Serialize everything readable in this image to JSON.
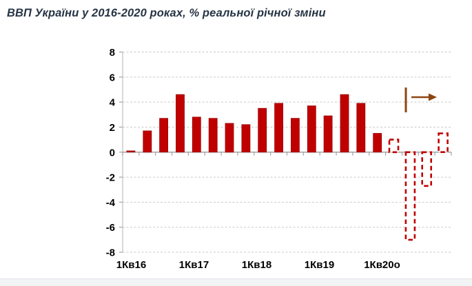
{
  "page": {
    "title": "ВВП України у 2016-2020 роках, % реальної річної зміни"
  },
  "chart_data": {
    "type": "bar",
    "title": "ВВП України у 2016-2020 роках, % реальної річної зміни",
    "ylabel": "% реальної річної зміни",
    "ylim": [
      -8,
      8
    ],
    "y_ticks": [
      "8",
      "6",
      "4",
      "2",
      "0",
      "-2",
      "-4",
      "-6",
      "-8"
    ],
    "x_tick_labels": [
      "1Кв16",
      "1Кв17",
      "1Кв18",
      "1Кв19",
      "1Кв20о"
    ],
    "grid": true,
    "legend": "none",
    "bar_color": "#c00000",
    "bar_edge_color": "#990000",
    "forecast_style": "dashed-outline",
    "bars": [
      {
        "quarter": "1Кв16",
        "value": 0.1,
        "forecast": false
      },
      {
        "quarter": "2Кв16",
        "value": 1.7,
        "forecast": false
      },
      {
        "quarter": "3Кв16",
        "value": 2.7,
        "forecast": false
      },
      {
        "quarter": "4Кв16",
        "value": 4.6,
        "forecast": false
      },
      {
        "quarter": "1Кв17",
        "value": 2.8,
        "forecast": false
      },
      {
        "quarter": "2Кв17",
        "value": 2.7,
        "forecast": false
      },
      {
        "quarter": "3Кв17",
        "value": 2.3,
        "forecast": false
      },
      {
        "quarter": "4Кв17",
        "value": 2.2,
        "forecast": false
      },
      {
        "quarter": "1Кв18",
        "value": 3.5,
        "forecast": false
      },
      {
        "quarter": "2Кв18",
        "value": 3.9,
        "forecast": false
      },
      {
        "quarter": "3Кв18",
        "value": 2.7,
        "forecast": false
      },
      {
        "quarter": "4Кв18",
        "value": 3.7,
        "forecast": false
      },
      {
        "quarter": "1Кв19",
        "value": 2.9,
        "forecast": false
      },
      {
        "quarter": "2Кв19",
        "value": 4.6,
        "forecast": false
      },
      {
        "quarter": "3Кв19",
        "value": 3.9,
        "forecast": false
      },
      {
        "quarter": "4Кв19",
        "value": 1.5,
        "forecast": false
      },
      {
        "quarter": "1Кв20о",
        "value": 1.0,
        "forecast": true
      },
      {
        "quarter": "2Кв20о",
        "value": -7.0,
        "forecast": true
      },
      {
        "quarter": "3Кв20о",
        "value": -2.7,
        "forecast": true
      },
      {
        "quarter": "4Кв20о",
        "value": 1.5,
        "forecast": true
      }
    ],
    "annotation": {
      "name": "forecast-direction-arrow",
      "color": "#8b4513"
    }
  },
  "colors": {
    "title_text": "#273444",
    "axis": "#a3a3a3",
    "grid": "#c9c9c9",
    "footer_strip": "#f2f3f5"
  }
}
